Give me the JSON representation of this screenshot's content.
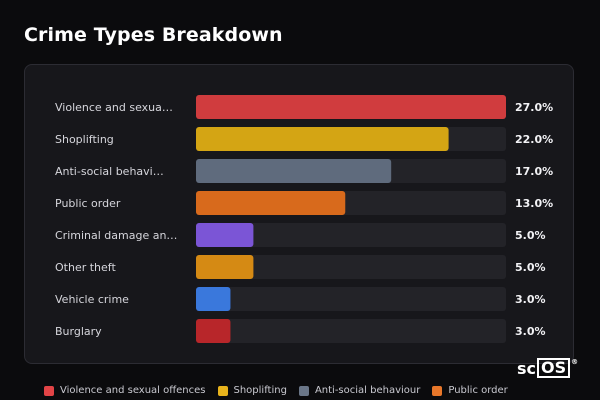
{
  "title": "Crime Types Breakdown",
  "watermark": {
    "prefix": "sc",
    "boxed": "OS",
    "mark": "®"
  },
  "chart_data": {
    "type": "bar",
    "orientation": "horizontal",
    "title": "Crime Types Breakdown",
    "xlim": [
      0,
      27
    ],
    "grid": false,
    "legend_position": "bottom",
    "categories": [
      "Violence and sexua…",
      "Shoplifting",
      "Anti-social behavi…",
      "Public order",
      "Criminal damage an…",
      "Other theft",
      "Vehicle crime",
      "Burglary"
    ],
    "values": [
      27.0,
      22.0,
      17.0,
      13.0,
      5.0,
      5.0,
      3.0,
      3.0
    ],
    "value_labels": [
      "27.0%",
      "22.0%",
      "17.0%",
      "13.0%",
      "5.0%",
      "5.0%",
      "3.0%",
      "3.0%"
    ],
    "colors": [
      "#d03c3e",
      "#d4a514",
      "#5f6b7d",
      "#d86a1c",
      "#7b55d6",
      "#d58a14",
      "#3a78dc",
      "#b8262a"
    ],
    "legend": [
      {
        "label": "Violence and sexual offences",
        "color": "#e24446"
      },
      {
        "label": "Shoplifting",
        "color": "#e8b31c"
      },
      {
        "label": "Anti-social behaviour",
        "color": "#6a7688"
      },
      {
        "label": "Public order",
        "color": "#e8772a"
      }
    ]
  }
}
